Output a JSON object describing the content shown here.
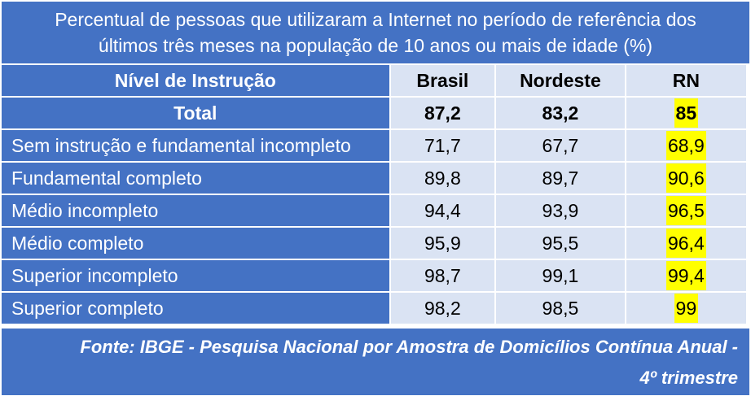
{
  "title": {
    "line1": "Percentual de pessoas que utilizaram a Internet no período de referência dos",
    "line2": "últimos três meses na população de 10 anos ou mais de idade (%)"
  },
  "table": {
    "headers": [
      "Nível de Instrução",
      "Brasil",
      "Nordeste",
      "RN"
    ],
    "total": {
      "label": "Total",
      "brasil": "87,2",
      "nordeste": "83,2",
      "rn": "85"
    },
    "rows": [
      {
        "label": "Sem instrução e fundamental incompleto",
        "brasil": "71,7",
        "nordeste": "67,7",
        "rn": "68,9"
      },
      {
        "label": "Fundamental completo",
        "brasil": "89,8",
        "nordeste": "89,7",
        "rn": "90,6"
      },
      {
        "label": "Médio incompleto",
        "brasil": "94,4",
        "nordeste": "93,9",
        "rn": "96,5"
      },
      {
        "label": "Médio completo",
        "brasil": "95,9",
        "nordeste": "95,5",
        "rn": "96,4"
      },
      {
        "label": "Superior incompleto",
        "brasil": "98,7",
        "nordeste": "99,1",
        "rn": "99,4"
      },
      {
        "label": "Superior completo",
        "brasil": "98,2",
        "nordeste": "98,5",
        "rn": "99"
      }
    ]
  },
  "footer": {
    "line1": "Fonte: IBGE - Pesquisa Nacional por Amostra de Domicílios Contínua Anual -",
    "line2": "4º trimestre"
  },
  "colors": {
    "header_blue": "#4472c4",
    "cell_light": "#dae3f3",
    "highlight": "#ffff00"
  }
}
